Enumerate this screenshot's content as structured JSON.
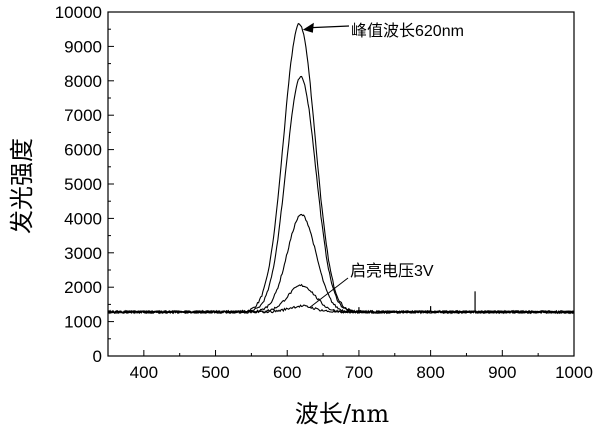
{
  "chart_data": {
    "type": "line",
    "xlabel": "波长/nm",
    "ylabel": "发光强度",
    "xlim": [
      350,
      1000
    ],
    "ylim": [
      0,
      10000
    ],
    "x_ticks": [
      400,
      500,
      600,
      700,
      800,
      900,
      1000
    ],
    "y_ticks": [
      0,
      1000,
      2000,
      3000,
      4000,
      5000,
      6000,
      7000,
      8000,
      9000,
      10000
    ],
    "grid": false,
    "legend": "none",
    "line_color": "#000000",
    "baseline": 1280,
    "series": [
      {
        "peak_x": 617,
        "peak_y": 9650,
        "width": 22
      },
      {
        "peak_x": 619,
        "peak_y": 8100,
        "width": 21
      },
      {
        "peak_x": 620,
        "peak_y": 4100,
        "width": 20
      },
      {
        "peak_x": 620,
        "peak_y": 2050,
        "width": 19
      },
      {
        "peak_x": 620,
        "peak_y": 1450,
        "width": 18
      }
    ],
    "spikes": [
      {
        "x": 862,
        "y": 1880
      },
      {
        "x": 800,
        "y": 1450
      },
      {
        "x": 700,
        "y": 1420
      }
    ],
    "annotations": [
      {
        "text": "峰值波长620nm",
        "target_x": 619,
        "target_y": 9600
      },
      {
        "text": "启亮电压3V",
        "target_x": 632,
        "target_y": 1420
      }
    ]
  }
}
